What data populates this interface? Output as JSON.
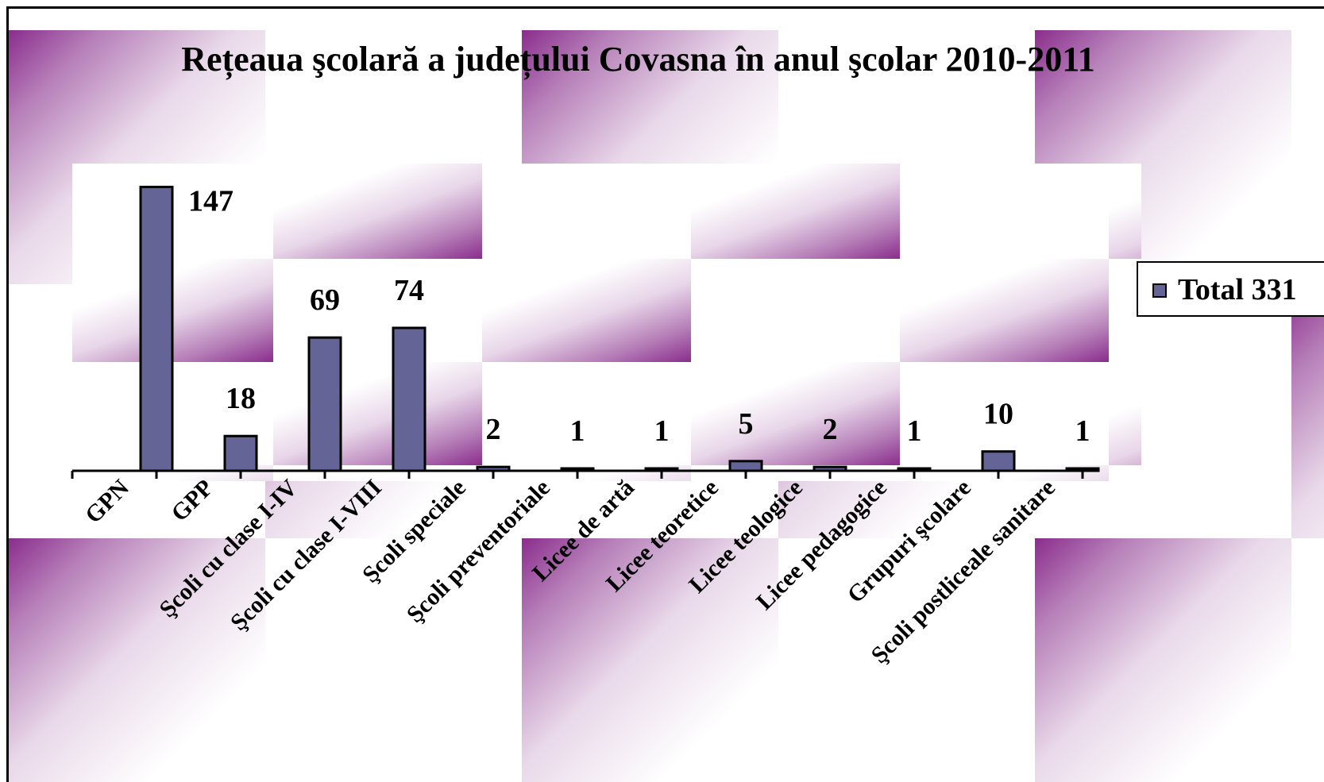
{
  "chart_data": {
    "type": "bar",
    "title": "Rețeaua şcolară a județului Covasna în anul şcolar 2010-2011",
    "xlabel": "",
    "ylabel": "",
    "categories": [
      "GPN",
      "GPP",
      "Şcoli cu clase I-IV",
      "Şcoli cu clase I-VIII",
      "Şcoli speciale",
      "Şcoli preventoriale",
      "Licee de artă",
      "Licee teoretice",
      "Licee teologice",
      "Licee pedagogice",
      "Grupuri şcolare",
      "Şcoli postliceale sanitare"
    ],
    "series": [
      {
        "name": "Total 331",
        "values": [
          147,
          18,
          69,
          74,
          2,
          1,
          1,
          5,
          2,
          1,
          10,
          1
        ],
        "color": "#646496"
      }
    ],
    "ylim": [
      0,
      155
    ],
    "grid": false,
    "legend": "right"
  }
}
